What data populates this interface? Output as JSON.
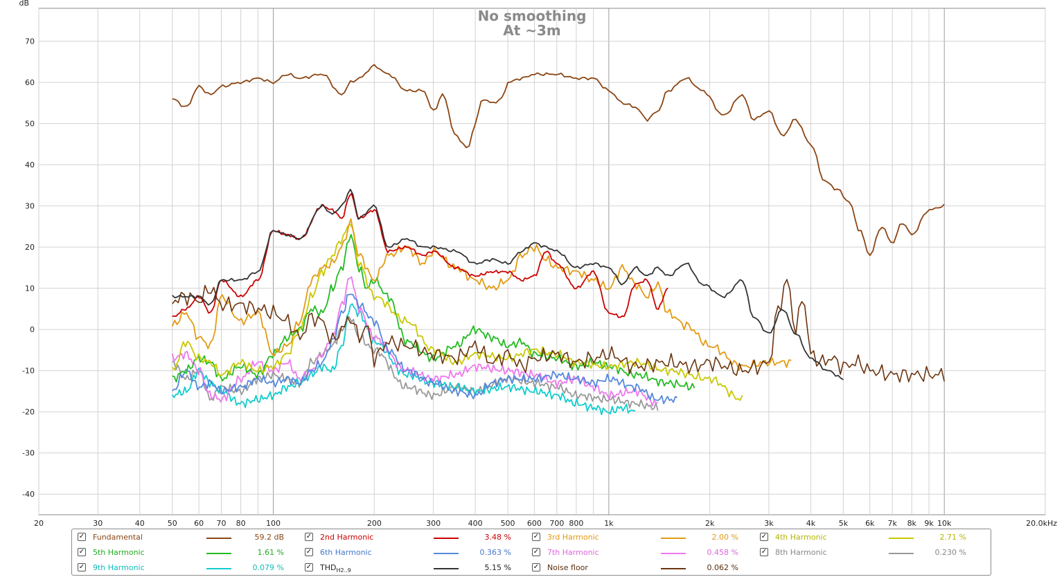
{
  "chart_data": {
    "type": "line",
    "title": "No smoothing",
    "subtitle": "At ~3m",
    "ylabel": "dB",
    "xlabel": "",
    "x_scale": "log",
    "xlim": [
      20,
      20000
    ],
    "ylim": [
      -45,
      78
    ],
    "grid": true,
    "legend_position": "bottom",
    "y_ticks": [
      -40,
      -30,
      -20,
      -10,
      0,
      10,
      20,
      30,
      40,
      50,
      60,
      70
    ],
    "x_ticks": [
      {
        "v": 20,
        "label": "20"
      },
      {
        "v": 30,
        "label": "30"
      },
      {
        "v": 40,
        "label": "40"
      },
      {
        "v": 50,
        "label": "50"
      },
      {
        "v": 60,
        "label": "60"
      },
      {
        "v": 70,
        "label": "70"
      },
      {
        "v": 80,
        "label": "80"
      },
      {
        "v": 100,
        "label": "100"
      },
      {
        "v": 200,
        "label": "200"
      },
      {
        "v": 300,
        "label": "300"
      },
      {
        "v": 400,
        "label": "400"
      },
      {
        "v": 500,
        "label": "500"
      },
      {
        "v": 600,
        "label": "600"
      },
      {
        "v": 700,
        "label": "700"
      },
      {
        "v": 800,
        "label": "800"
      },
      {
        "v": 1000,
        "label": "1k"
      },
      {
        "v": 2000,
        "label": "2k"
      },
      {
        "v": 3000,
        "label": "3k"
      },
      {
        "v": 4000,
        "label": "4k"
      },
      {
        "v": 5000,
        "label": "5k"
      },
      {
        "v": 6000,
        "label": "6k"
      },
      {
        "v": 7000,
        "label": "7k"
      },
      {
        "v": 8000,
        "label": "8k"
      },
      {
        "v": 9000,
        "label": "9k"
      },
      {
        "v": 10000,
        "label": "10k"
      },
      {
        "v": 20000,
        "label": "20.0kHz"
      }
    ],
    "series": [
      {
        "name": "Fundamental",
        "color": "#8b4513",
        "value_label": "59.2 dB",
        "x": [
          50,
          55,
          60,
          65,
          70,
          80,
          90,
          100,
          110,
          120,
          140,
          160,
          170,
          180,
          200,
          220,
          250,
          280,
          300,
          320,
          350,
          380,
          400,
          420,
          450,
          480,
          500,
          550,
          600,
          650,
          700,
          800,
          900,
          1000,
          1100,
          1200,
          1300,
          1400,
          1500,
          1700,
          1900,
          2200,
          2500,
          2700,
          3000,
          3300,
          3600,
          4000,
          4400,
          4800,
          5200,
          5600,
          6000,
          6500,
          7000,
          7500,
          8000,
          9000,
          10000
        ],
        "y": [
          56,
          54,
          59,
          57,
          59,
          60,
          61,
          60,
          62,
          61,
          62,
          57,
          60,
          61,
          64,
          62,
          58,
          58,
          53,
          57,
          47,
          44,
          50,
          56,
          55,
          56,
          60,
          61,
          62,
          62,
          62,
          61,
          61,
          58,
          55,
          54,
          51,
          53,
          58,
          61,
          58,
          52,
          57,
          51,
          53,
          47,
          51,
          45,
          36,
          34,
          31,
          24,
          18,
          25,
          21,
          26,
          23,
          29,
          30
        ]
      },
      {
        "name": "2nd Harmonic",
        "color": "#cc0000",
        "value_label": "3.48 %",
        "x": [
          50,
          55,
          60,
          65,
          70,
          80,
          90,
          100,
          110,
          120,
          140,
          150,
          160,
          170,
          180,
          200,
          220,
          250,
          280,
          300,
          350,
          400,
          450,
          500,
          550,
          600,
          650,
          700,
          800,
          900,
          1000,
          1100,
          1200,
          1300,
          1400,
          1500
        ],
        "y": [
          3,
          5,
          8,
          4,
          12,
          8,
          12,
          24,
          23,
          22,
          30,
          29,
          27,
          33,
          27,
          29,
          19,
          20,
          18,
          19,
          15,
          13,
          14,
          14,
          12,
          13,
          19,
          16,
          10,
          14,
          4,
          3,
          11,
          12,
          5,
          10
        ]
      },
      {
        "name": "3rd Harmonic",
        "color": "#e39a12",
        "value_label": "2.00 %",
        "x": [
          50,
          55,
          60,
          65,
          70,
          80,
          90,
          100,
          110,
          120,
          130,
          140,
          150,
          160,
          170,
          180,
          200,
          220,
          250,
          280,
          300,
          350,
          400,
          450,
          500,
          550,
          600,
          650,
          700,
          800,
          900,
          1000,
          1100,
          1200,
          1300,
          1400,
          1500,
          1700,
          2000,
          2500,
          3000,
          3500
        ],
        "y": [
          1,
          4,
          -2,
          -4,
          8,
          2,
          4,
          -6,
          -4,
          2,
          12,
          15,
          16,
          20,
          26,
          18,
          12,
          18,
          20,
          16,
          19,
          15,
          12,
          10,
          12,
          18,
          20,
          17,
          15,
          14,
          12,
          10,
          15,
          11,
          8,
          11,
          4,
          1,
          -4,
          -9,
          -8,
          -8
        ]
      },
      {
        "name": "4th Harmonic",
        "color": "#c8c800",
        "value_label": "2.71 %",
        "x": [
          50,
          55,
          60,
          65,
          70,
          80,
          90,
          100,
          110,
          120,
          130,
          140,
          150,
          160,
          170,
          180,
          200,
          250,
          300,
          350,
          400,
          500,
          600,
          700,
          800,
          1000,
          1200,
          1500,
          2000,
          2500
        ],
        "y": [
          -10,
          -3,
          -7,
          -8,
          -11,
          -8,
          -10,
          -9,
          -6,
          0,
          8,
          14,
          18,
          22,
          26,
          16,
          8,
          2,
          -5,
          -8,
          -6,
          -7,
          -5,
          -6,
          -8,
          -9,
          -8,
          -10,
          -12,
          -17
        ]
      },
      {
        "name": "5th Harmonic",
        "color": "#22bb22",
        "value_label": "1.61 %",
        "x": [
          50,
          55,
          60,
          65,
          70,
          80,
          90,
          100,
          110,
          120,
          130,
          140,
          150,
          160,
          170,
          180,
          190,
          200,
          220,
          250,
          300,
          350,
          400,
          450,
          500,
          550,
          600,
          700,
          800,
          900,
          1000,
          1200,
          1500,
          1800
        ],
        "y": [
          -12,
          -10,
          -7,
          -8,
          -12,
          -9,
          -11,
          -6,
          -2,
          0,
          5,
          4,
          10,
          15,
          23,
          15,
          10,
          12,
          8,
          -3,
          -7,
          -4,
          0,
          -2,
          -4,
          -3,
          -6,
          -7,
          -9,
          -8,
          -9,
          -11,
          -13,
          -14
        ]
      },
      {
        "name": "6th Harmonic",
        "color": "#5588dd",
        "value_label": "0.363 %",
        "x": [
          50,
          55,
          60,
          65,
          70,
          80,
          90,
          100,
          110,
          120,
          130,
          140,
          150,
          160,
          170,
          180,
          200,
          220,
          250,
          300,
          350,
          400,
          450,
          500,
          600,
          700,
          800,
          900,
          1000,
          1200,
          1400,
          1600
        ],
        "y": [
          -15,
          -10,
          -14,
          -13,
          -15,
          -14,
          -12,
          -13,
          -12,
          -13,
          -10,
          -8,
          -3,
          4,
          9,
          6,
          2,
          -5,
          -10,
          -13,
          -15,
          -16,
          -13,
          -12,
          -12,
          -11,
          -12,
          -13,
          -12,
          -14,
          -17,
          -17
        ]
      },
      {
        "name": "7th Harmonic",
        "color": "#ee77ee",
        "value_label": "0.458 %",
        "x": [
          50,
          55,
          60,
          65,
          70,
          80,
          90,
          100,
          110,
          120,
          130,
          140,
          150,
          160,
          170,
          180,
          200,
          250,
          300,
          350,
          400,
          500,
          600,
          700,
          800,
          900,
          1000,
          1200,
          1400
        ],
        "y": [
          -7,
          -6,
          -10,
          -16,
          -17,
          -12,
          -8,
          -10,
          -8,
          -12,
          -10,
          -6,
          -2,
          6,
          13,
          5,
          -2,
          -10,
          -12,
          -11,
          -9,
          -10,
          -11,
          -13,
          -12,
          -14,
          -16,
          -15,
          -18
        ]
      },
      {
        "name": "8th Harmonic",
        "color": "#999999",
        "value_label": "0.230 %",
        "x": [
          50,
          55,
          60,
          65,
          70,
          80,
          90,
          100,
          110,
          120,
          130,
          140,
          150,
          160,
          170,
          180,
          200,
          250,
          300,
          350,
          400,
          500,
          600,
          700,
          800,
          1000,
          1200,
          1400
        ],
        "y": [
          -8,
          -12,
          -10,
          -17,
          -14,
          -15,
          -12,
          -11,
          -12,
          -13,
          -8,
          -6,
          -4,
          0,
          3,
          -2,
          -5,
          -14,
          -16,
          -14,
          -15,
          -12,
          -13,
          -14,
          -16,
          -17,
          -18,
          -19
        ]
      },
      {
        "name": "9th Harmonic",
        "color": "#11cccc",
        "value_label": "0.079 %",
        "x": [
          50,
          55,
          60,
          65,
          70,
          80,
          90,
          100,
          110,
          120,
          130,
          140,
          150,
          160,
          170,
          180,
          200,
          250,
          300,
          350,
          400,
          500,
          600,
          700,
          800,
          900,
          1000,
          1100,
          1200
        ],
        "y": [
          -16,
          -15,
          -10,
          -13,
          -15,
          -18,
          -17,
          -16,
          -14,
          -13,
          -11,
          -9,
          -10,
          -4,
          6,
          4,
          -3,
          -11,
          -13,
          -14,
          -15,
          -14,
          -15,
          -16,
          -18,
          -19,
          -20,
          -19,
          -20
        ]
      },
      {
        "name": "THD",
        "color": "#333333",
        "value_label": "5.15 %",
        "x": [
          50,
          55,
          60,
          65,
          70,
          80,
          90,
          100,
          110,
          120,
          140,
          150,
          160,
          170,
          180,
          200,
          220,
          250,
          280,
          300,
          350,
          400,
          450,
          500,
          550,
          600,
          650,
          700,
          800,
          900,
          1000,
          1100,
          1200,
          1300,
          1400,
          1500,
          1700,
          1900,
          2200,
          2500,
          2700,
          3000,
          3300,
          3600,
          4000,
          4500,
          5000
        ],
        "y": [
          8,
          8,
          8,
          6,
          12,
          12,
          14,
          24,
          23,
          22,
          30,
          28,
          30,
          34,
          27,
          30,
          20,
          22,
          20,
          20,
          19,
          16,
          17,
          16,
          19,
          21,
          20,
          19,
          15,
          16,
          15,
          11,
          15,
          13,
          15,
          13,
          16,
          11,
          8,
          12,
          3,
          -1,
          5,
          -1,
          -7,
          -10,
          -12
        ]
      },
      {
        "name": "Noise floor",
        "color": "#6b3510",
        "value_label": "0.062 %",
        "x": [
          50,
          55,
          60,
          65,
          70,
          80,
          90,
          100,
          110,
          120,
          130,
          140,
          150,
          160,
          170,
          180,
          190,
          200,
          220,
          250,
          300,
          350,
          400,
          450,
          500,
          550,
          600,
          700,
          800,
          900,
          1000,
          1200,
          1500,
          1800,
          2000,
          2500,
          2800,
          3000,
          3200,
          3400,
          3600,
          3800,
          4000,
          4300,
          4600,
          5000,
          5500,
          6000,
          7000,
          8000,
          9000,
          10000
        ],
        "y": [
          7,
          8,
          7,
          10,
          6,
          6,
          5,
          4,
          2,
          -2,
          3,
          2,
          -3,
          0,
          3,
          -2,
          1,
          -7,
          -3,
          -4,
          -6,
          -7,
          -4,
          -8,
          -6,
          -9,
          -7,
          -6,
          -8,
          -7,
          -6,
          -9,
          -8,
          -9,
          -8,
          -10,
          -9,
          -8,
          5,
          12,
          0,
          8,
          -6,
          -8,
          -7,
          -9,
          -8,
          -10,
          -11,
          -11,
          -11,
          -11
        ]
      }
    ]
  },
  "legend": {
    "rows": [
      [
        {
          "name": "Fundamental",
          "value": "59.2 dB",
          "color": "#8b4513",
          "text_color": "#8b4513"
        },
        {
          "name": "2nd Harmonic",
          "value": "3.48 %",
          "color": "#cc0000",
          "text_color": "#cc0000"
        },
        {
          "name": "3rd Harmonic",
          "value": "2.00 %",
          "color": "#e39a12",
          "text_color": "#e39a12"
        },
        {
          "name": "4th Harmonic",
          "value": "2.71 %",
          "color": "#c8c800",
          "text_color": "#b5b500"
        }
      ],
      [
        {
          "name": "5th Harmonic",
          "value": "1.61 %",
          "color": "#22bb22",
          "text_color": "#22aa22"
        },
        {
          "name": "6th Harmonic",
          "value": "0.363 %",
          "color": "#5588dd",
          "text_color": "#4477cc"
        },
        {
          "name": "7th Harmonic",
          "value": "0.458 %",
          "color": "#ee77ee",
          "text_color": "#dd66dd"
        },
        {
          "name": "8th Harmonic",
          "value": "0.230 %",
          "color": "#999999",
          "text_color": "#888888"
        }
      ],
      [
        {
          "name": "9th Harmonic",
          "value": "0.079 %",
          "color": "#11cccc",
          "text_color": "#11bbbb"
        },
        {
          "name": "THD",
          "sub": "H2..9",
          "value": "5.15 %",
          "color": "#333333",
          "text_color": "#222222"
        },
        {
          "name": "Noise floor",
          "value": "0.062 %",
          "color": "#6b3510",
          "text_color": "#5a2d0c"
        }
      ]
    ],
    "checkmark": "✓"
  }
}
